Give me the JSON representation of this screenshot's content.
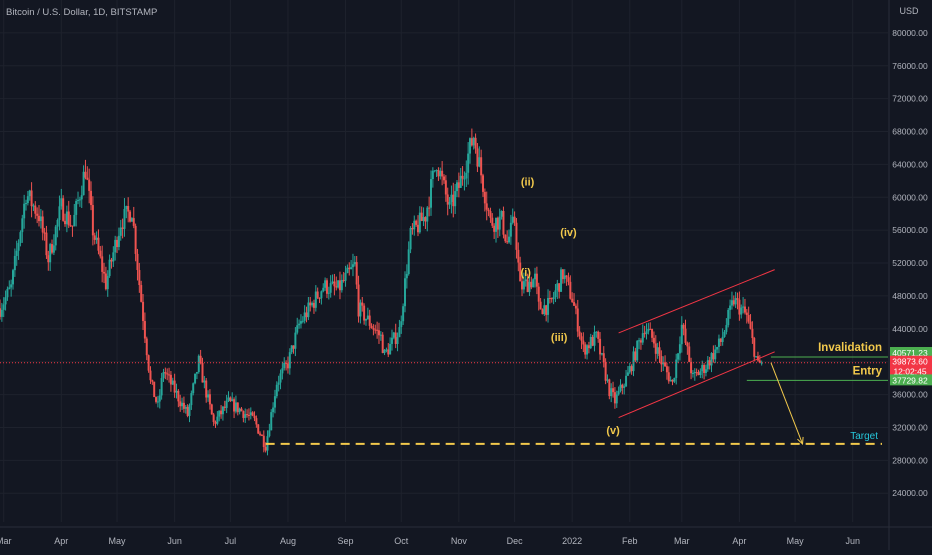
{
  "header": {
    "symbol_title": "Bitcoin / U.S. Dollar, 1D, BITSTAMP"
  },
  "currency_label": "USD",
  "colors": {
    "background": "#131722",
    "grid": "#1e222d",
    "up": "#26a69a",
    "down": "#ef5350",
    "axis_text": "#b2b5be",
    "wave_label": "#f2c94c",
    "target_line": "#f2c94c",
    "invalidation": "#4caf50",
    "entry_price_bg": "#f23645",
    "channel": "#f23645"
  },
  "chart_data": {
    "type": "candlestick",
    "x_axis": {
      "ticks": [
        {
          "label": "Mar",
          "date": "2021-03-01"
        },
        {
          "label": "Apr",
          "date": "2021-04-01"
        },
        {
          "label": "May",
          "date": "2021-05-01"
        },
        {
          "label": "Jun",
          "date": "2021-06-01"
        },
        {
          "label": "Jul",
          "date": "2021-07-01"
        },
        {
          "label": "Aug",
          "date": "2021-08-01"
        },
        {
          "label": "Sep",
          "date": "2021-09-01"
        },
        {
          "label": "Oct",
          "date": "2021-10-01"
        },
        {
          "label": "Nov",
          "date": "2021-11-01"
        },
        {
          "label": "Dec",
          "date": "2021-12-01"
        },
        {
          "label": "2022",
          "date": "2022-01-01"
        },
        {
          "label": "Feb",
          "date": "2022-02-01"
        },
        {
          "label": "Mar",
          "date": "2022-03-01"
        },
        {
          "label": "Apr",
          "date": "2022-04-01"
        },
        {
          "label": "May",
          "date": "2022-05-01"
        },
        {
          "label": "Jun",
          "date": "2022-06-01"
        }
      ],
      "range": [
        "2021-02-27",
        "2022-06-20"
      ]
    },
    "y_axis": {
      "ticks": [
        "80000.00",
        "76000.00",
        "72000.00",
        "68000.00",
        "64000.00",
        "60000.00",
        "56000.00",
        "52000.00",
        "48000.00",
        "44000.00",
        "40000.00",
        "36000.00",
        "32000.00",
        "28000.00",
        "24000.00"
      ],
      "range": [
        20500,
        84000
      ]
    },
    "price_path": [
      [
        "2021-02-27",
        46500
      ],
      [
        "2021-03-05",
        49000
      ],
      [
        "2021-03-13",
        60500
      ],
      [
        "2021-03-20",
        57800
      ],
      [
        "2021-03-25",
        52500
      ],
      [
        "2021-04-01",
        58800
      ],
      [
        "2021-04-07",
        56500
      ],
      [
        "2021-04-14",
        63500
      ],
      [
        "2021-04-18",
        56000
      ],
      [
        "2021-04-25",
        49500
      ],
      [
        "2021-05-03",
        57000
      ],
      [
        "2021-05-09",
        58500
      ],
      [
        "2021-05-13",
        49500
      ],
      [
        "2021-05-19",
        37500
      ],
      [
        "2021-05-23",
        34500
      ],
      [
        "2021-05-26",
        39000
      ],
      [
        "2021-06-01",
        36500
      ],
      [
        "2021-06-08",
        33500
      ],
      [
        "2021-06-14",
        40000
      ],
      [
        "2021-06-22",
        32500
      ],
      [
        "2021-06-30",
        35000
      ],
      [
        "2021-07-06",
        34200
      ],
      [
        "2021-07-14",
        32800
      ],
      [
        "2021-07-20",
        29800
      ],
      [
        "2021-07-26",
        37500
      ],
      [
        "2021-08-01",
        39800
      ],
      [
        "2021-08-07",
        44500
      ],
      [
        "2021-08-14",
        47000
      ],
      [
        "2021-08-20",
        49200
      ],
      [
        "2021-08-28",
        48800
      ],
      [
        "2021-09-06",
        51700
      ],
      [
        "2021-09-08",
        46500
      ],
      [
        "2021-09-20",
        43000
      ],
      [
        "2021-09-22",
        40800
      ],
      [
        "2021-09-30",
        43800
      ],
      [
        "2021-10-06",
        55300
      ],
      [
        "2021-10-14",
        57800
      ],
      [
        "2021-10-20",
        64500
      ],
      [
        "2021-10-27",
        58500
      ],
      [
        "2021-11-01",
        61300
      ],
      [
        "2021-11-09",
        67500
      ],
      [
        "2021-11-18",
        57000
      ],
      [
        "2021-11-24",
        57200
      ],
      [
        "2021-11-27",
        54500
      ],
      [
        "2021-12-01",
        57200
      ],
      [
        "2021-12-04",
        49000
      ],
      [
        "2021-12-12",
        50100
      ],
      [
        "2021-12-14",
        46600
      ],
      [
        "2021-12-20",
        46800
      ],
      [
        "2021-12-27",
        50700
      ],
      [
        "2022-01-01",
        47700
      ],
      [
        "2022-01-07",
        41500
      ],
      [
        "2022-01-14",
        43000
      ],
      [
        "2022-01-21",
        36500
      ],
      [
        "2022-01-24",
        35200
      ],
      [
        "2022-01-31",
        38400
      ],
      [
        "2022-02-09",
        44300
      ],
      [
        "2022-02-14",
        42500
      ],
      [
        "2022-02-18",
        40000
      ],
      [
        "2022-02-24",
        37300
      ],
      [
        "2022-03-01",
        44400
      ],
      [
        "2022-03-07",
        38000
      ],
      [
        "2022-03-14",
        39500
      ],
      [
        "2022-03-22",
        42400
      ],
      [
        "2022-03-29",
        47500
      ],
      [
        "2022-04-05",
        45500
      ],
      [
        "2022-04-11",
        39500
      ],
      [
        "2022-04-13",
        39873.6
      ]
    ],
    "drawings": {
      "channel_upper": [
        [
          "2022-01-26",
          43500
        ],
        [
          "2022-04-20",
          51200
        ]
      ],
      "channel_lower": [
        [
          "2022-01-26",
          33200
        ],
        [
          "2022-04-20",
          41200
        ]
      ],
      "projection_arrow": [
        [
          "2022-04-18",
          39873.6
        ],
        [
          "2022-05-05",
          30000
        ]
      ],
      "target_level": 30000,
      "invalidation_level": 40571.23,
      "entry_level": 39873.6,
      "stop_level": 37729.82
    },
    "wave_labels": [
      {
        "text": "(i)",
        "date": "2021-12-07",
        "price": 50900
      },
      {
        "text": "(ii)",
        "date": "2021-12-08",
        "price": 61900
      },
      {
        "text": "(iii)",
        "date": "2021-12-25",
        "price": 43000
      },
      {
        "text": "(iv)",
        "date": "2021-12-30",
        "price": 55800
      },
      {
        "text": "(v)",
        "date": "2022-01-23",
        "price": 31700
      }
    ],
    "annotations": {
      "invalidation": "Invalidation",
      "entry": "Entry",
      "target": "Target"
    },
    "price_labels": {
      "invalidation": "40571.23",
      "last_price": "39873.60",
      "countdown": "12:02:45",
      "stop": "37729.82"
    }
  }
}
